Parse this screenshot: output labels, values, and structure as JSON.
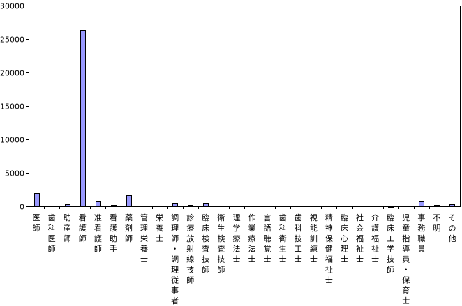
{
  "chart_data": {
    "type": "bar",
    "title": "",
    "xlabel": "",
    "ylabel": "",
    "ylim": [
      0,
      30000
    ],
    "yticks": [
      0,
      5000,
      10000,
      15000,
      20000,
      25000,
      30000
    ],
    "ytick_labels": [
      "0",
      "5000",
      "10000",
      "15000",
      "20000",
      "25000",
      "30000"
    ],
    "grid": false,
    "legend": "none",
    "bar_color": "#9999ff",
    "categories": [
      "医師",
      "歯科医師",
      "助産師",
      "看護師",
      "准看護師",
      "看護助手",
      "薬剤師",
      "管理栄養士",
      "栄養士",
      "調理師・調理従事者",
      "診療放射線技師",
      "臨床検査技師",
      "衛生検査技師",
      "理学療法士",
      "作業療法士",
      "言語聴覚士",
      "歯科衛生士",
      "歯科技工士",
      "視能訓練士",
      "精神保健福祉士",
      "臨床心理士",
      "社会福祉士",
      "介護福祉士",
      "臨床工学技師",
      "児童指導員・保育士",
      "事務職員",
      "不明",
      "その他"
    ],
    "values": [
      1950,
      0,
      280,
      26350,
      730,
      170,
      1650,
      100,
      90,
      470,
      260,
      480,
      0,
      90,
      0,
      0,
      0,
      0,
      0,
      0,
      0,
      0,
      0,
      40,
      0,
      680,
      170,
      300
    ]
  }
}
